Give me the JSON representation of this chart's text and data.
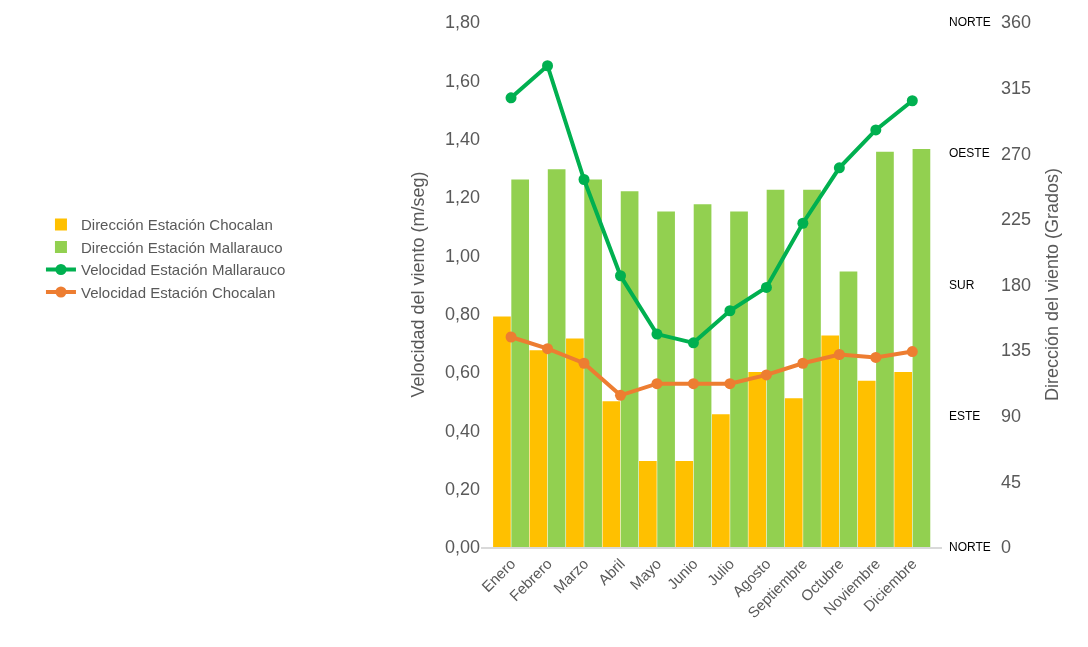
{
  "chart_data": {
    "type": "bar",
    "ylabel": "Velocidad del viento (m/seg)",
    "y2label": "Dirección del viento (Grados)",
    "categories": [
      "Enero",
      "Febrero",
      "Marzo",
      "Abril",
      "Mayo",
      "Junio",
      "Julio",
      "Agosto",
      "Septiembre",
      "Octubre",
      "Noviembre",
      "Diciembre"
    ],
    "series": [
      {
        "name": "Dirección Estación Chocalan",
        "type": "bar",
        "axis": "y2",
        "color": "#ffc000",
        "values": [
          158,
          135,
          143,
          100,
          59,
          59,
          91,
          120,
          102,
          145,
          114,
          120
        ]
      },
      {
        "name": "Dirección Estación Mallarauco",
        "type": "bar",
        "axis": "y2",
        "color": "#92d050",
        "values": [
          252,
          259,
          252,
          244,
          230,
          235,
          230,
          245,
          245,
          189,
          271,
          273
        ]
      },
      {
        "name": "Velocidad Estación Mallarauco",
        "type": "line",
        "color": "#00b050",
        "marker": "circle",
        "values": [
          1.54,
          1.65,
          1.26,
          0.93,
          0.73,
          0.7,
          0.81,
          0.89,
          1.11,
          1.3,
          1.43,
          1.53
        ]
      },
      {
        "name": "Velocidad Estación Chocalan",
        "type": "line",
        "color": "#ed7d31",
        "marker": "circle",
        "values": [
          0.72,
          0.68,
          0.63,
          0.52,
          0.56,
          0.56,
          0.56,
          0.59,
          0.63,
          0.66,
          0.65,
          0.67
        ]
      }
    ],
    "ylim": [
      0,
      1.8
    ],
    "yticks": [
      {
        "value": 0,
        "label": "0,00"
      },
      {
        "value": 0.2,
        "label": "0,20"
      },
      {
        "value": 0.4,
        "label": "0,40"
      },
      {
        "value": 0.6,
        "label": "0,60"
      },
      {
        "value": 0.8,
        "label": "0,80"
      },
      {
        "value": 1.0,
        "label": "1,00"
      },
      {
        "value": 1.2,
        "label": "1,20"
      },
      {
        "value": 1.4,
        "label": "1,40"
      },
      {
        "value": 1.6,
        "label": "1,60"
      },
      {
        "value": 1.8,
        "label": "1,80"
      }
    ],
    "y2lim": [
      0,
      360
    ],
    "y2ticks": [
      0,
      45,
      90,
      135,
      180,
      225,
      270,
      315,
      360
    ],
    "annotations": [
      "NORTE",
      "OESTE",
      "SUR",
      "ESTE",
      "NORTE"
    ],
    "legend": "left"
  }
}
